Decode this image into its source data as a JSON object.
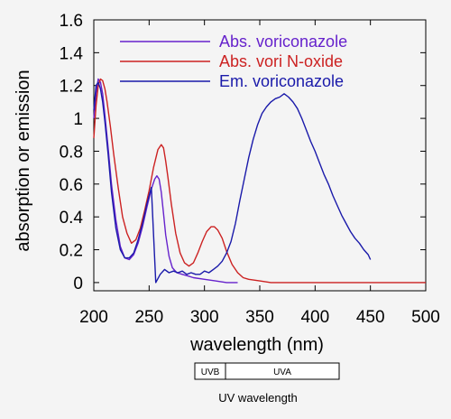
{
  "chart_data": {
    "type": "line",
    "title": "",
    "xlabel": "wavelength (nm)",
    "ylabel": "absorption or emission",
    "xlim": [
      200,
      500
    ],
    "ylim": [
      -0.05,
      1.6
    ],
    "xticks": [
      200,
      250,
      300,
      350,
      400,
      450,
      500
    ],
    "xtick_labels": [
      "200",
      "250",
      "300",
      "350",
      "400",
      "450",
      "500"
    ],
    "yticks": [
      0,
      0.2,
      0.4,
      0.6,
      0.8,
      1,
      1.2,
      1.4,
      1.6
    ],
    "ytick_labels": [
      "0",
      "0.2",
      "0.4",
      "0.6",
      "0.8",
      "1",
      "1.2",
      "1.4",
      "1.6"
    ],
    "grid": false,
    "legend_position": "top-right",
    "series": [
      {
        "name": "Abs. voriconazole",
        "color": "#6622cc",
        "x": [
          200,
          202,
          204,
          206,
          208,
          210,
          213,
          216,
          220,
          224,
          228,
          232,
          236,
          240,
          244,
          248,
          252,
          255,
          257,
          259,
          261,
          263,
          265,
          268,
          271,
          275,
          280,
          285,
          290,
          300,
          310,
          320,
          330
        ],
        "y": [
          1.0,
          1.15,
          1.24,
          1.22,
          1.15,
          1.02,
          0.82,
          0.6,
          0.38,
          0.22,
          0.15,
          0.14,
          0.17,
          0.24,
          0.34,
          0.46,
          0.57,
          0.63,
          0.65,
          0.63,
          0.55,
          0.42,
          0.29,
          0.16,
          0.09,
          0.06,
          0.05,
          0.04,
          0.03,
          0.02,
          0.01,
          0.0,
          0.0
        ]
      },
      {
        "name": "Abs. vori N-oxide",
        "color": "#cc2222",
        "x": [
          200,
          202,
          204,
          206,
          208,
          210,
          212,
          215,
          218,
          222,
          226,
          230,
          234,
          238,
          242,
          246,
          250,
          254,
          258,
          261,
          263,
          265,
          267,
          270,
          274,
          278,
          282,
          286,
          290,
          294,
          298,
          302,
          306,
          309,
          312,
          316,
          320,
          325,
          330,
          335,
          340,
          350,
          360,
          380,
          400,
          450,
          500
        ],
        "y": [
          0.88,
          1.08,
          1.2,
          1.24,
          1.23,
          1.18,
          1.1,
          0.95,
          0.78,
          0.58,
          0.4,
          0.3,
          0.24,
          0.26,
          0.33,
          0.44,
          0.56,
          0.7,
          0.81,
          0.84,
          0.82,
          0.74,
          0.64,
          0.48,
          0.3,
          0.18,
          0.12,
          0.1,
          0.12,
          0.18,
          0.25,
          0.31,
          0.34,
          0.34,
          0.32,
          0.27,
          0.19,
          0.11,
          0.06,
          0.03,
          0.02,
          0.01,
          0.0,
          0.0,
          0.0,
          0.0,
          0.0
        ]
      },
      {
        "name": "Em. voriconazole",
        "color": "#1a1aaa",
        "x": [
          200,
          202,
          204,
          206,
          208,
          210,
          213,
          216,
          220,
          224,
          228,
          232,
          236,
          240,
          244,
          248,
          252,
          256,
          260,
          264,
          268,
          272,
          276,
          280,
          284,
          288,
          292,
          296,
          300,
          304,
          308,
          312,
          316,
          320,
          324,
          328,
          332,
          336,
          340,
          344,
          348,
          352,
          356,
          360,
          364,
          368,
          372,
          376,
          380,
          384,
          388,
          392,
          396,
          400,
          404,
          408,
          412,
          416,
          420,
          424,
          428,
          432,
          436,
          440,
          444,
          448,
          450
        ],
        "y": [
          1.05,
          1.2,
          1.22,
          1.18,
          1.1,
          0.98,
          0.78,
          0.55,
          0.33,
          0.2,
          0.15,
          0.15,
          0.18,
          0.26,
          0.36,
          0.48,
          0.58,
          0.0,
          0.05,
          0.08,
          0.06,
          0.07,
          0.06,
          0.07,
          0.05,
          0.06,
          0.05,
          0.05,
          0.07,
          0.06,
          0.08,
          0.1,
          0.13,
          0.18,
          0.25,
          0.36,
          0.5,
          0.63,
          0.76,
          0.87,
          0.96,
          1.03,
          1.07,
          1.1,
          1.12,
          1.13,
          1.15,
          1.13,
          1.1,
          1.06,
          1.0,
          0.93,
          0.86,
          0.8,
          0.73,
          0.66,
          0.6,
          0.53,
          0.47,
          0.41,
          0.36,
          0.31,
          0.27,
          0.24,
          0.2,
          0.17,
          0.14
        ]
      }
    ]
  },
  "uv_band": {
    "segments": [
      "UVB",
      "UVA"
    ],
    "caption": "UV wavelength"
  }
}
